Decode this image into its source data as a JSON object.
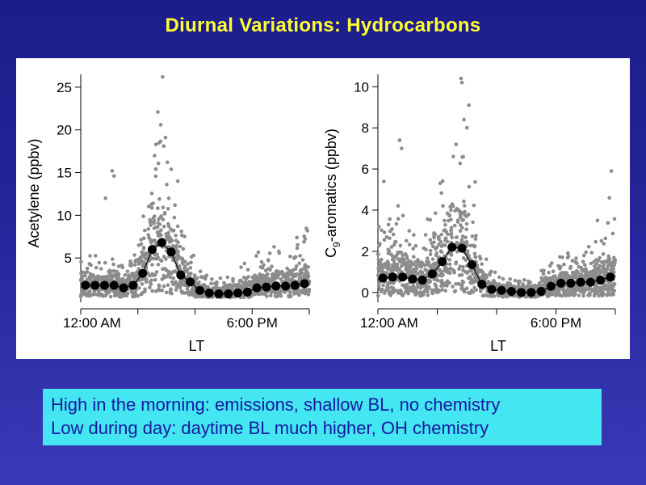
{
  "slide": {
    "title": "Diurnal Variations: Hydrocarbons",
    "notes": [
      "High in the morning: emissions, shallow BL, no chemistry",
      "Low during day: daytime BL much higher, OH chemistry"
    ],
    "colors": {
      "background": "#22228f",
      "title": "#ffff33",
      "note_box": "#44e6f2",
      "note_text": "#1818a0",
      "scatter": "#8c8c8c",
      "mean_line": "#000000"
    }
  },
  "chart_data": [
    {
      "type": "scatter",
      "title": "",
      "xlabel": "LT",
      "ylabel": "Acetylene (ppbv)",
      "xlim": [
        0,
        24
      ],
      "ylim": [
        0,
        26.5
      ],
      "xticks": [
        0,
        6,
        12,
        18,
        24
      ],
      "xtick_labels": [
        "12:00 AM",
        "",
        "",
        "6:00 PM",
        ""
      ],
      "yticks": [
        5,
        10,
        15,
        20,
        25
      ],
      "ytick_labels": [
        "5",
        "10",
        "15",
        "20",
        "25"
      ],
      "series": [
        {
          "name": "hourly mean",
          "style": "line-with-markers",
          "x": [
            0.5,
            1.5,
            2.5,
            3.5,
            4.5,
            5.5,
            6.5,
            7.5,
            8.5,
            9.5,
            10.5,
            11.5,
            12.5,
            13.5,
            14.5,
            15.5,
            16.5,
            17.5,
            18.5,
            19.5,
            20.5,
            21.5,
            22.5,
            23.5
          ],
          "values": [
            1.8,
            1.8,
            1.8,
            1.8,
            1.5,
            1.8,
            3.2,
            6.0,
            6.8,
            5.7,
            3.0,
            2.2,
            1.2,
            0.9,
            0.8,
            0.8,
            0.9,
            1.0,
            1.5,
            1.6,
            1.7,
            1.7,
            1.8,
            2.0
          ]
        },
        {
          "name": "samples",
          "style": "scatter",
          "point_count": 1400,
          "spread_profile": [
            3.5,
            3.5,
            3.0,
            5.0,
            3.0,
            4.0,
            8.0,
            12.0,
            14.0,
            10.0,
            6.0,
            4.0,
            2.5,
            2.0,
            2.0,
            2.0,
            3.0,
            3.5,
            4.5,
            4.5,
            5.0,
            5.5,
            6.0,
            6.5
          ],
          "outliers": [
            {
              "x": 3.3,
              "y": 15.2
            },
            {
              "x": 3.5,
              "y": 14.6
            },
            {
              "x": 7.9,
              "y": 18.3
            },
            {
              "x": 8.1,
              "y": 22.1
            },
            {
              "x": 8.4,
              "y": 20.6
            },
            {
              "x": 8.6,
              "y": 26.2
            },
            {
              "x": 8.9,
              "y": 19.1
            },
            {
              "x": 9.1,
              "y": 16.2
            },
            {
              "x": 2.6,
              "y": 12.0
            },
            {
              "x": 10.2,
              "y": 14.0
            },
            {
              "x": 22.7,
              "y": 7.4
            },
            {
              "x": 23.8,
              "y": 8.2
            }
          ]
        }
      ]
    },
    {
      "type": "scatter",
      "title": "",
      "xlabel": "LT",
      "ylabel": "C9-aromatics (ppbv)",
      "ylabel_main": "C",
      "ylabel_subscript": "9",
      "ylabel_rest": "-aromatics (ppbv)",
      "xlim": [
        0,
        24
      ],
      "ylim": [
        -0.4,
        10.6
      ],
      "xticks": [
        0,
        6,
        12,
        18,
        24
      ],
      "xtick_labels": [
        "12:00 AM",
        "",
        "",
        "6:00 PM",
        ""
      ],
      "yticks": [
        0,
        2,
        4,
        6,
        8,
        10
      ],
      "ytick_labels": [
        "0",
        "2",
        "4",
        "6",
        "8",
        "10"
      ],
      "series": [
        {
          "name": "hourly mean",
          "style": "line-with-markers",
          "x": [
            0.5,
            1.5,
            2.5,
            3.5,
            4.5,
            5.5,
            6.5,
            7.5,
            8.5,
            9.5,
            10.5,
            11.5,
            12.5,
            13.5,
            14.5,
            15.5,
            16.5,
            17.5,
            18.5,
            19.5,
            20.5,
            21.5,
            22.5,
            23.5
          ],
          "values": [
            0.7,
            0.75,
            0.75,
            0.65,
            0.6,
            0.9,
            1.5,
            2.2,
            2.15,
            1.35,
            0.4,
            0.15,
            0.1,
            0.05,
            0.0,
            0.0,
            0.05,
            0.3,
            0.45,
            0.45,
            0.5,
            0.5,
            0.6,
            0.75
          ]
        },
        {
          "name": "samples",
          "style": "scatter",
          "point_count": 1600,
          "spread_profile": [
            2.5,
            3.0,
            3.5,
            2.5,
            2.5,
            3.0,
            4.5,
            6.0,
            6.5,
            4.5,
            1.8,
            0.9,
            0.8,
            0.8,
            0.7,
            0.8,
            1.0,
            1.3,
            1.4,
            1.5,
            1.8,
            2.0,
            2.5,
            3.0
          ],
          "outliers": [
            {
              "x": 2.2,
              "y": 7.4
            },
            {
              "x": 2.4,
              "y": 7.0
            },
            {
              "x": 7.9,
              "y": 7.2
            },
            {
              "x": 8.4,
              "y": 10.4
            },
            {
              "x": 8.5,
              "y": 10.2
            },
            {
              "x": 8.7,
              "y": 8.4
            },
            {
              "x": 9.0,
              "y": 8.0
            },
            {
              "x": 9.2,
              "y": 9.1
            },
            {
              "x": 0.6,
              "y": 5.4
            },
            {
              "x": 23.6,
              "y": 5.9
            },
            {
              "x": 23.4,
              "y": 4.6
            },
            {
              "x": 22.2,
              "y": 3.5
            }
          ]
        }
      ]
    }
  ]
}
